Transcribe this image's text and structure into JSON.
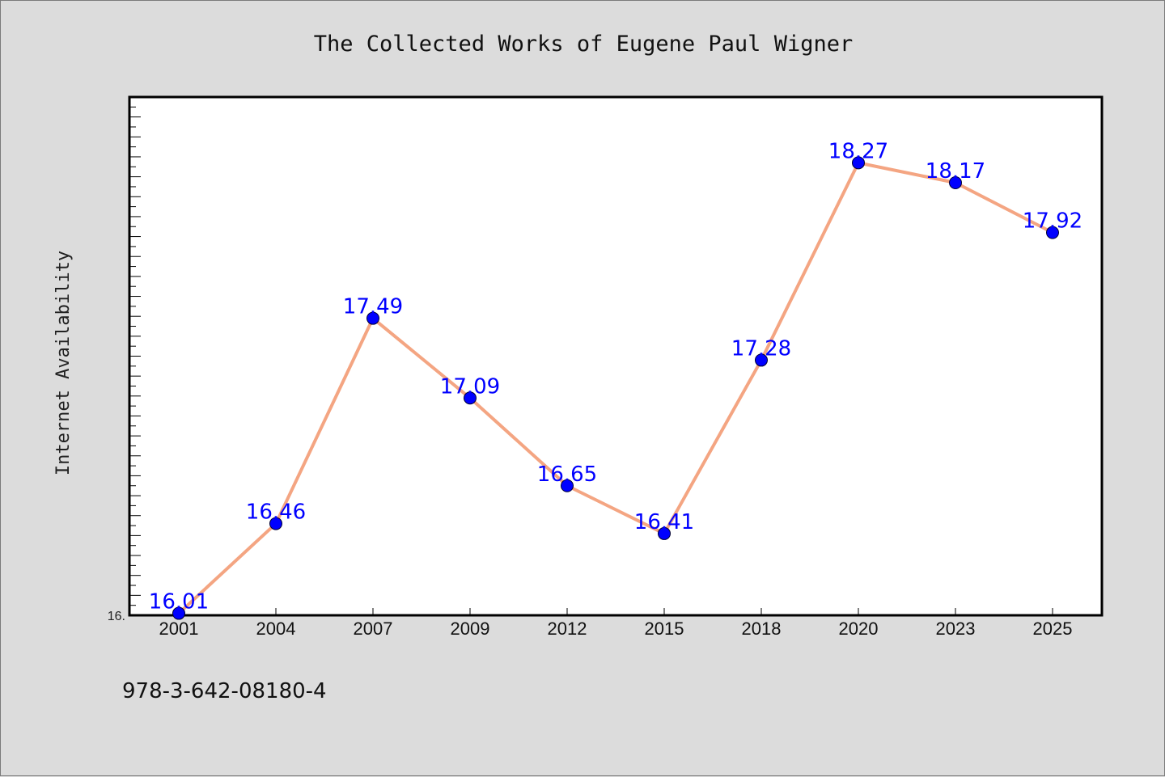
{
  "chart_data": {
    "type": "line",
    "title": "The Collected Works of Eugene Paul Wigner",
    "xlabel": "",
    "ylabel": "Internet Availability",
    "categories": [
      "2001",
      "2004",
      "2007",
      "2009",
      "2012",
      "2015",
      "2018",
      "2020",
      "2023",
      "2025"
    ],
    "series": [
      {
        "values": [
          16.01,
          16.46,
          17.49,
          17.09,
          16.65,
          16.41,
          17.28,
          18.27,
          18.17,
          17.92
        ],
        "data_labels": [
          "16.01",
          "16.46",
          "17.49",
          "17.09",
          "16.65",
          "16.41",
          "17.28",
          "18.27",
          "18.17",
          "17.92"
        ]
      }
    ],
    "ylim": [
      16.0,
      18.6
    ],
    "y_tick_labels": [
      "16."
    ],
    "grid": false,
    "legend": "none",
    "colors": {
      "line": "#f4a582",
      "marker": "#0000ff",
      "label": "#0000ff",
      "plot_bg": "#ffffff",
      "figure_bg": "#dcdcdc"
    }
  },
  "footer": {
    "isbn": "978-3-642-08180-4"
  }
}
